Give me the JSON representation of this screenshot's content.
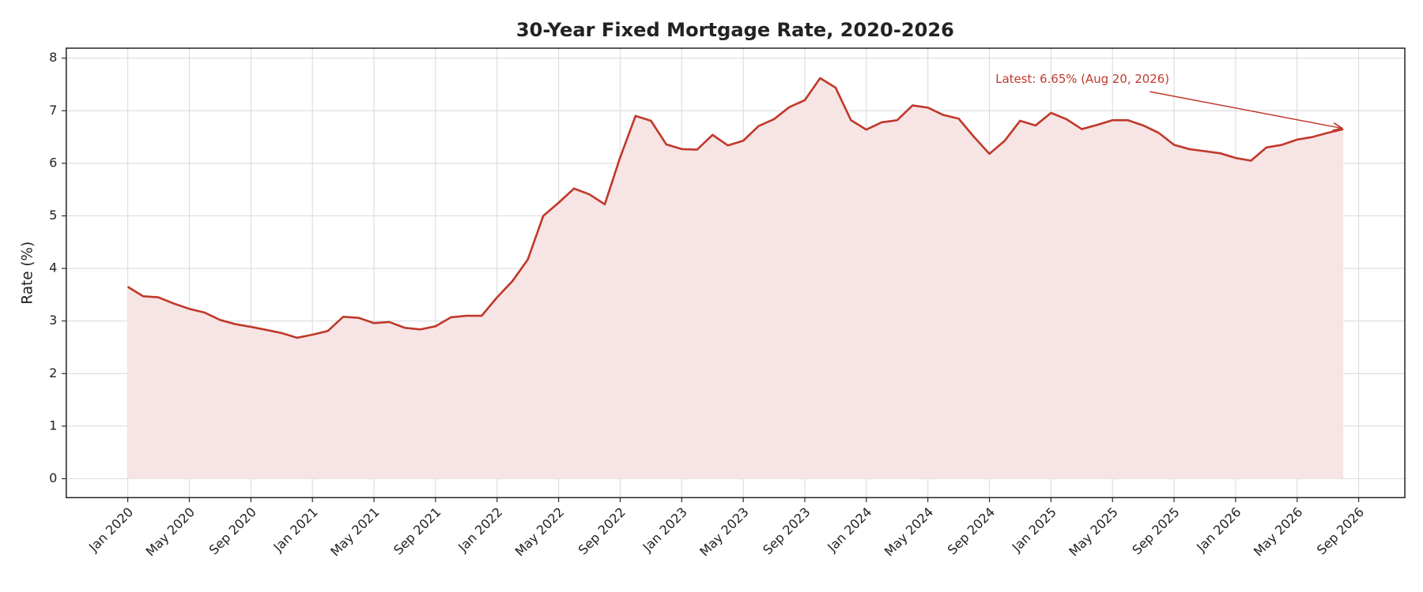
{
  "chart_data": {
    "type": "area-line",
    "title": "30-Year Fixed Mortgage Rate, 2020-2026",
    "y_label": "Rate (%)",
    "annotation": "Latest: 6.65% (Aug 20, 2026)",
    "color": "#c0392b",
    "fill_color": "#f7e4e5",
    "grid": true,
    "x": [
      "2020-01",
      "2020-02",
      "2020-03",
      "2020-04",
      "2020-05",
      "2020-06",
      "2020-07",
      "2020-08",
      "2020-09",
      "2020-10",
      "2020-11",
      "2020-12",
      "2021-01",
      "2021-02",
      "2021-03",
      "2021-04",
      "2021-05",
      "2021-06",
      "2021-07",
      "2021-08",
      "2021-09",
      "2021-10",
      "2021-11",
      "2021-12",
      "2022-01",
      "2022-02",
      "2022-03",
      "2022-04",
      "2022-05",
      "2022-06",
      "2022-07",
      "2022-08",
      "2022-09",
      "2022-10",
      "2022-11",
      "2022-12",
      "2023-01",
      "2023-02",
      "2023-03",
      "2023-04",
      "2023-05",
      "2023-06",
      "2023-07",
      "2023-08",
      "2023-09",
      "2023-10",
      "2023-11",
      "2023-12",
      "2024-01",
      "2024-02",
      "2024-03",
      "2024-04",
      "2024-05",
      "2024-06",
      "2024-07",
      "2024-08",
      "2024-09",
      "2024-10",
      "2024-11",
      "2024-12",
      "2025-01",
      "2025-02",
      "2025-03",
      "2025-04",
      "2025-05",
      "2025-06",
      "2025-07",
      "2025-08",
      "2025-09",
      "2025-10",
      "2025-11",
      "2025-12",
      "2026-01",
      "2026-02",
      "2026-03",
      "2026-04",
      "2026-05",
      "2026-06",
      "2026-07",
      "2026-08"
    ],
    "values": [
      3.65,
      3.47,
      3.45,
      3.33,
      3.23,
      3.16,
      3.02,
      2.94,
      2.89,
      2.83,
      2.77,
      2.68,
      2.74,
      2.81,
      3.08,
      3.06,
      2.96,
      2.98,
      2.87,
      2.84,
      2.9,
      3.07,
      3.1,
      3.1,
      3.45,
      3.76,
      4.17,
      5.0,
      5.25,
      5.52,
      5.41,
      5.22,
      6.11,
      6.9,
      6.81,
      6.36,
      6.27,
      6.26,
      6.54,
      6.34,
      6.43,
      6.71,
      6.84,
      7.07,
      7.2,
      7.62,
      7.44,
      6.82,
      6.64,
      6.78,
      6.82,
      7.1,
      7.06,
      6.92,
      6.85,
      6.5,
      6.18,
      6.43,
      6.81,
      6.72,
      6.96,
      6.84,
      6.65,
      6.73,
      6.82,
      6.82,
      6.72,
      6.58,
      6.35,
      6.27,
      6.23,
      6.19,
      6.1,
      6.05,
      6.3,
      6.35,
      6.45,
      6.5,
      6.58,
      6.65
    ],
    "xlim": [
      "2019-09",
      "2026-12"
    ],
    "xticks": [
      {
        "value": "2020-01",
        "label": "Jan 2020"
      },
      {
        "value": "2020-05",
        "label": "May 2020"
      },
      {
        "value": "2020-09",
        "label": "Sep 2020"
      },
      {
        "value": "2021-01",
        "label": "Jan 2021"
      },
      {
        "value": "2021-05",
        "label": "May 2021"
      },
      {
        "value": "2021-09",
        "label": "Sep 2021"
      },
      {
        "value": "2022-01",
        "label": "Jan 2022"
      },
      {
        "value": "2022-05",
        "label": "May 2022"
      },
      {
        "value": "2022-09",
        "label": "Sep 2022"
      },
      {
        "value": "2023-01",
        "label": "Jan 2023"
      },
      {
        "value": "2023-05",
        "label": "May 2023"
      },
      {
        "value": "2023-09",
        "label": "Sep 2023"
      },
      {
        "value": "2024-01",
        "label": "Jan 2024"
      },
      {
        "value": "2024-05",
        "label": "May 2024"
      },
      {
        "value": "2024-09",
        "label": "Sep 2024"
      },
      {
        "value": "2025-01",
        "label": "Jan 2025"
      },
      {
        "value": "2025-05",
        "label": "May 2025"
      },
      {
        "value": "2025-09",
        "label": "Sep 2025"
      },
      {
        "value": "2026-01",
        "label": "Jan 2026"
      },
      {
        "value": "2026-05",
        "label": "May 2026"
      },
      {
        "value": "2026-09",
        "label": "Sep 2026"
      }
    ],
    "ylim": [
      -0.36,
      8.19
    ],
    "yticks": [
      0,
      1,
      2,
      3,
      4,
      5,
      6,
      7,
      8
    ]
  }
}
